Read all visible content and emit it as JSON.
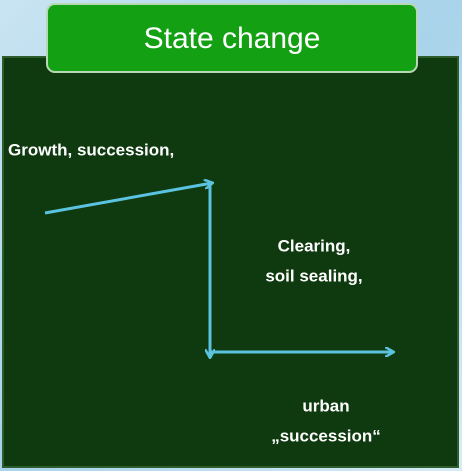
{
  "title": "State change",
  "labels": [
    "Growth, succession,",
    "Clearing,",
    "soil sealing,",
    "urban",
    "„succession“"
  ]
}
